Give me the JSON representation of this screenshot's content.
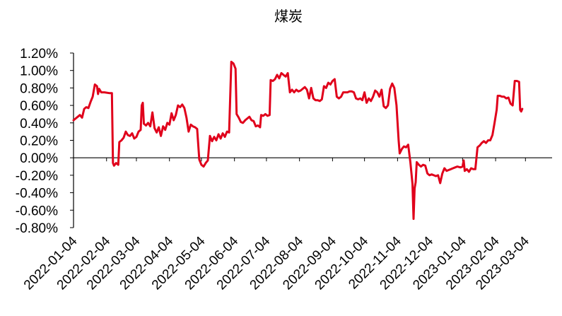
{
  "chart_data": {
    "type": "line",
    "title": "煤炭",
    "xlabel": "",
    "ylabel": "",
    "ylim": [
      -0.008,
      0.012
    ],
    "y_ticks": [
      {
        "value": 0.012,
        "label": "1.20%"
      },
      {
        "value": 0.01,
        "label": "1.00%"
      },
      {
        "value": 0.008,
        "label": "0.80%"
      },
      {
        "value": 0.006,
        "label": "0.60%"
      },
      {
        "value": 0.004,
        "label": "0.40%"
      },
      {
        "value": 0.002,
        "label": "0.20%"
      },
      {
        "value": 0.0,
        "label": "0.00%"
      },
      {
        "value": -0.002,
        "label": "-0.20%"
      },
      {
        "value": -0.004,
        "label": "-0.40%"
      },
      {
        "value": -0.006,
        "label": "-0.60%"
      },
      {
        "value": -0.008,
        "label": "-0.80%"
      }
    ],
    "x_ticks": [
      "2022-01-04",
      "2022-02-04",
      "2022-03-04",
      "2022-04-04",
      "2022-05-04",
      "2022-06-04",
      "2022-07-04",
      "2022-08-04",
      "2022-09-04",
      "2022-10-04",
      "2022-11-04",
      "2022-12-04",
      "2023-01-04",
      "2023-02-04",
      "2023-03-04"
    ],
    "x_range": [
      "2022-01-04",
      "2023-03-29"
    ],
    "color": "#E0001B",
    "grid": false,
    "legend": "none",
    "series": [
      {
        "points": [
          [
            "2022-01-04",
            0.0043
          ],
          [
            "2022-01-06",
            0.0045
          ],
          [
            "2022-01-08",
            0.0047
          ],
          [
            "2022-01-10",
            0.0049
          ],
          [
            "2022-01-12",
            0.0046
          ],
          [
            "2022-01-14",
            0.0056
          ],
          [
            "2022-01-16",
            0.0058
          ],
          [
            "2022-01-18",
            0.0057
          ],
          [
            "2022-01-20",
            0.0064
          ],
          [
            "2022-01-22",
            0.007
          ],
          [
            "2022-01-24",
            0.0084
          ],
          [
            "2022-01-26",
            0.0082
          ],
          [
            "2022-01-27",
            0.0073
          ],
          [
            "2022-01-28",
            0.0079
          ],
          [
            "2022-01-30",
            0.0075
          ],
          [
            "2022-02-02",
            0.0075
          ],
          [
            "2022-02-07",
            0.0074
          ],
          [
            "2022-02-09",
            0.0074
          ],
          [
            "2022-02-10",
            -0.0006
          ],
          [
            "2022-02-11",
            -0.0009
          ],
          [
            "2022-02-13",
            -0.0006
          ],
          [
            "2022-02-15",
            -0.0008
          ],
          [
            "2022-02-16",
            0.0018
          ],
          [
            "2022-02-18",
            0.002
          ],
          [
            "2022-02-20",
            0.0023
          ],
          [
            "2022-02-22",
            0.003
          ],
          [
            "2022-02-24",
            0.0026
          ],
          [
            "2022-02-26",
            0.0025
          ],
          [
            "2022-02-28",
            0.0028
          ],
          [
            "2022-03-02",
            0.0022
          ],
          [
            "2022-03-04",
            0.0024
          ],
          [
            "2022-03-06",
            0.003
          ],
          [
            "2022-03-08",
            0.0032
          ],
          [
            "2022-03-09",
            0.006
          ],
          [
            "2022-03-10",
            0.0063
          ],
          [
            "2022-03-11",
            0.0039
          ],
          [
            "2022-03-13",
            0.0037
          ],
          [
            "2022-03-15",
            0.004
          ],
          [
            "2022-03-17",
            0.0036
          ],
          [
            "2022-03-19",
            0.0052
          ],
          [
            "2022-03-21",
            0.0034
          ],
          [
            "2022-03-23",
            0.0029
          ],
          [
            "2022-03-25",
            0.0035
          ],
          [
            "2022-03-27",
            0.0025
          ],
          [
            "2022-03-29",
            0.0036
          ],
          [
            "2022-03-31",
            0.0032
          ],
          [
            "2022-04-02",
            0.004
          ],
          [
            "2022-04-04",
            0.0038
          ],
          [
            "2022-04-06",
            0.0051
          ],
          [
            "2022-04-08",
            0.0043
          ],
          [
            "2022-04-10",
            0.0049
          ],
          [
            "2022-04-12",
            0.006
          ],
          [
            "2022-04-14",
            0.0058
          ],
          [
            "2022-04-16",
            0.0061
          ],
          [
            "2022-04-18",
            0.0057
          ],
          [
            "2022-04-20",
            0.0046
          ],
          [
            "2022-04-22",
            0.003
          ],
          [
            "2022-04-24",
            0.0038
          ],
          [
            "2022-04-26",
            0.0036
          ],
          [
            "2022-04-28",
            0.0035
          ],
          [
            "2022-04-30",
            0.0033
          ],
          [
            "2022-05-02",
            -0.0002
          ],
          [
            "2022-05-04",
            -0.0008
          ],
          [
            "2022-05-06",
            -0.001
          ],
          [
            "2022-05-08",
            -0.0006
          ],
          [
            "2022-05-10",
            -0.0003
          ],
          [
            "2022-05-12",
            0.0025
          ],
          [
            "2022-05-14",
            0.0019
          ],
          [
            "2022-05-16",
            0.0024
          ],
          [
            "2022-05-18",
            0.002
          ],
          [
            "2022-05-20",
            0.0027
          ],
          [
            "2022-05-22",
            0.0022
          ],
          [
            "2022-05-24",
            0.0028
          ],
          [
            "2022-05-26",
            0.0024
          ],
          [
            "2022-05-28",
            0.003
          ],
          [
            "2022-05-30",
            0.0029
          ],
          [
            "2022-06-01",
            0.011
          ],
          [
            "2022-06-03",
            0.0108
          ],
          [
            "2022-06-05",
            0.0102
          ],
          [
            "2022-06-06",
            0.005
          ],
          [
            "2022-06-08",
            0.0046
          ],
          [
            "2022-06-10",
            0.0041
          ],
          [
            "2022-06-12",
            0.004
          ],
          [
            "2022-06-14",
            0.0043
          ],
          [
            "2022-06-16",
            0.0045
          ],
          [
            "2022-06-18",
            0.0047
          ],
          [
            "2022-06-20",
            0.0043
          ],
          [
            "2022-06-22",
            0.0042
          ],
          [
            "2022-06-24",
            0.0036
          ],
          [
            "2022-06-26",
            0.0037
          ],
          [
            "2022-06-28",
            0.0035
          ],
          [
            "2022-06-29",
            0.0049
          ],
          [
            "2022-07-01",
            0.0048
          ],
          [
            "2022-07-03",
            0.005
          ],
          [
            "2022-07-05",
            0.0048
          ],
          [
            "2022-07-07",
            0.0049
          ],
          [
            "2022-07-08",
            0.0089
          ],
          [
            "2022-07-10",
            0.0088
          ],
          [
            "2022-07-12",
            0.009
          ],
          [
            "2022-07-14",
            0.0095
          ],
          [
            "2022-07-16",
            0.0091
          ],
          [
            "2022-07-18",
            0.0097
          ],
          [
            "2022-07-20",
            0.0095
          ],
          [
            "2022-07-22",
            0.0093
          ],
          [
            "2022-07-24",
            0.0097
          ],
          [
            "2022-07-26",
            0.0075
          ],
          [
            "2022-07-28",
            0.0078
          ],
          [
            "2022-07-30",
            0.0075
          ],
          [
            "2022-08-01",
            0.0078
          ],
          [
            "2022-08-03",
            0.0076
          ],
          [
            "2022-08-05",
            0.0077
          ],
          [
            "2022-08-07",
            0.0079
          ],
          [
            "2022-08-09",
            0.0081
          ],
          [
            "2022-08-11",
            0.0078
          ],
          [
            "2022-08-13",
            0.0068
          ],
          [
            "2022-08-15",
            0.008
          ],
          [
            "2022-08-17",
            0.0068
          ],
          [
            "2022-08-19",
            0.0066
          ],
          [
            "2022-08-21",
            0.0066
          ],
          [
            "2022-08-23",
            0.0065
          ],
          [
            "2022-08-25",
            0.0067
          ],
          [
            "2022-08-27",
            0.0082
          ],
          [
            "2022-08-29",
            0.008
          ],
          [
            "2022-08-31",
            0.0086
          ],
          [
            "2022-09-02",
            0.0084
          ],
          [
            "2022-09-04",
            0.0088
          ],
          [
            "2022-09-06",
            0.009
          ],
          [
            "2022-09-08",
            0.007
          ],
          [
            "2022-09-10",
            0.0068
          ],
          [
            "2022-09-12",
            0.007
          ],
          [
            "2022-09-14",
            0.0075
          ],
          [
            "2022-09-16",
            0.0075
          ],
          [
            "2022-09-18",
            0.0075
          ],
          [
            "2022-09-20",
            0.0076
          ],
          [
            "2022-09-22",
            0.0076
          ],
          [
            "2022-09-24",
            0.0075
          ],
          [
            "2022-09-26",
            0.0068
          ],
          [
            "2022-09-28",
            0.0067
          ],
          [
            "2022-09-30",
            0.0068
          ],
          [
            "2022-10-02",
            0.0066
          ],
          [
            "2022-10-04",
            0.0075
          ],
          [
            "2022-10-06",
            0.0063
          ],
          [
            "2022-10-08",
            0.0068
          ],
          [
            "2022-10-10",
            0.0065
          ],
          [
            "2022-10-12",
            0.007
          ],
          [
            "2022-10-14",
            0.0077
          ],
          [
            "2022-10-16",
            0.0075
          ],
          [
            "2022-10-18",
            0.007
          ],
          [
            "2022-10-20",
            0.0078
          ],
          [
            "2022-10-22",
            0.0059
          ],
          [
            "2022-10-24",
            0.0057
          ],
          [
            "2022-10-26",
            0.006
          ],
          [
            "2022-10-28",
            0.0079
          ],
          [
            "2022-10-30",
            0.0085
          ],
          [
            "2022-11-01",
            0.008
          ],
          [
            "2022-11-03",
            0.006
          ],
          [
            "2022-11-05",
            0.002
          ],
          [
            "2022-11-06",
            0.0005
          ],
          [
            "2022-11-08",
            0.001
          ],
          [
            "2022-11-10",
            0.0013
          ],
          [
            "2022-11-12",
            0.0012
          ],
          [
            "2022-11-14",
            0.0015
          ],
          [
            "2022-11-16",
            -0.0005
          ],
          [
            "2022-11-18",
            -0.003
          ],
          [
            "2022-11-19",
            -0.007
          ],
          [
            "2022-11-20",
            -0.0035
          ],
          [
            "2022-11-21",
            -0.0028
          ],
          [
            "2022-11-22",
            -0.0005
          ],
          [
            "2022-11-24",
            -0.0008
          ],
          [
            "2022-11-26",
            -0.001
          ],
          [
            "2022-11-28",
            -0.0008
          ],
          [
            "2022-11-30",
            -0.0009
          ],
          [
            "2022-12-02",
            -0.0018
          ],
          [
            "2022-12-04",
            -0.002
          ],
          [
            "2022-12-06",
            -0.0019
          ],
          [
            "2022-12-08",
            -0.002
          ],
          [
            "2022-12-10",
            -0.0021
          ],
          [
            "2022-12-12",
            -0.002
          ],
          [
            "2022-12-14",
            -0.0029
          ],
          [
            "2022-12-16",
            -0.0018
          ],
          [
            "2022-12-18",
            -0.0012
          ],
          [
            "2022-12-20",
            -0.0015
          ],
          [
            "2022-12-22",
            -0.0014
          ],
          [
            "2022-12-24",
            -0.0013
          ],
          [
            "2022-12-26",
            -0.0012
          ],
          [
            "2022-12-28",
            -0.0011
          ],
          [
            "2022-12-30",
            -0.001
          ],
          [
            "2023-01-02",
            -0.0011
          ],
          [
            "2023-01-04",
            -0.001
          ],
          [
            "2023-01-05",
            -0.0003
          ],
          [
            "2023-01-06",
            -0.0015
          ],
          [
            "2023-01-08",
            -0.0013
          ],
          [
            "2023-01-10",
            -0.0016
          ],
          [
            "2023-01-12",
            -0.0012
          ],
          [
            "2023-01-14",
            -0.0013
          ],
          [
            "2023-01-16",
            -0.0013
          ],
          [
            "2023-01-18",
            0.0012
          ],
          [
            "2023-01-20",
            0.0014
          ],
          [
            "2023-01-22",
            0.0017
          ],
          [
            "2023-01-24",
            0.0019
          ],
          [
            "2023-01-26",
            0.0017
          ],
          [
            "2023-01-28",
            0.002
          ],
          [
            "2023-01-30",
            0.002
          ],
          [
            "2023-02-01",
            0.0026
          ],
          [
            "2023-02-03",
            0.004
          ],
          [
            "2023-02-05",
            0.0055
          ],
          [
            "2023-02-06",
            0.0071
          ],
          [
            "2023-02-08",
            0.0071
          ],
          [
            "2023-02-10",
            0.007
          ],
          [
            "2023-02-12",
            0.007
          ],
          [
            "2023-02-14",
            0.0068
          ],
          [
            "2023-02-16",
            0.0069
          ],
          [
            "2023-02-18",
            0.0062
          ],
          [
            "2023-02-20",
            0.006
          ],
          [
            "2023-02-22",
            0.0088
          ],
          [
            "2023-02-24",
            0.0088
          ],
          [
            "2023-02-26",
            0.0087
          ],
          [
            "2023-02-27",
            0.0055
          ],
          [
            "2023-02-28",
            0.0053
          ],
          [
            "2023-03-01",
            0.0056
          ]
        ]
      }
    ]
  }
}
